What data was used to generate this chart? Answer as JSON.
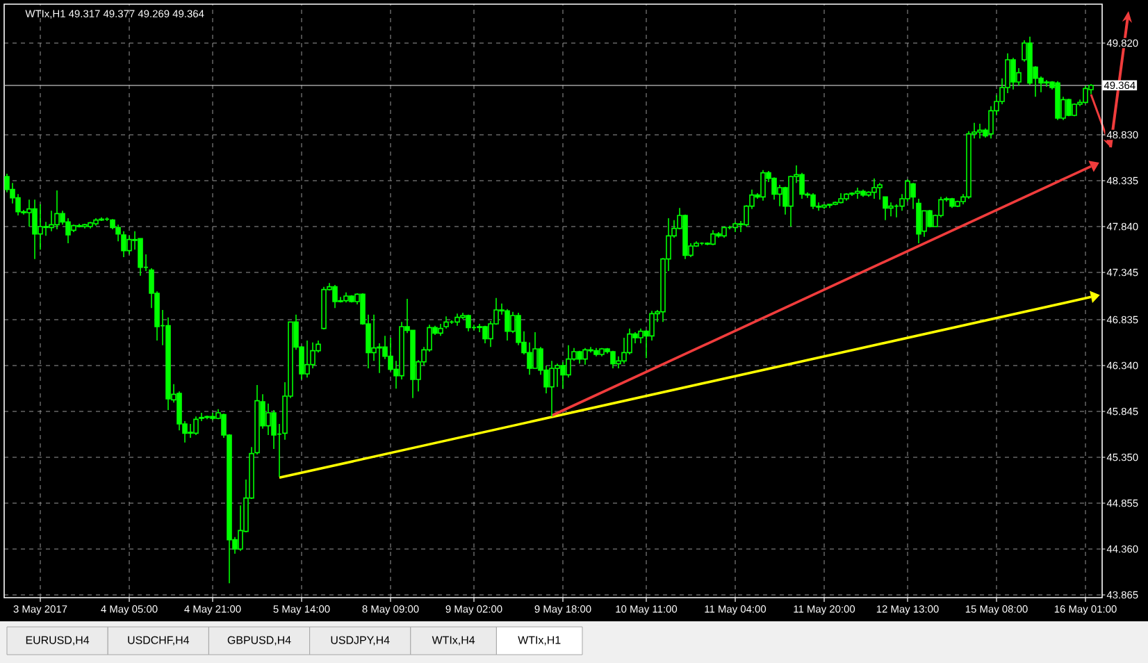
{
  "chart_data": {
    "type": "candlestick",
    "title": "WTIx,H1 49.317 49.377 49.269 49.364",
    "color": "#00ff00",
    "grid": true,
    "categories": [
      null,
      null,
      null,
      null,
      null,
      null,
      "3 May 2017",
      null,
      null,
      null,
      null,
      null,
      null,
      null,
      null,
      null,
      null,
      null,
      null,
      null,
      null,
      null,
      "4 May 05:00",
      null,
      null,
      null,
      null,
      null,
      null,
      null,
      null,
      null,
      null,
      null,
      null,
      null,
      null,
      "4 May 21:00",
      null,
      null,
      null,
      null,
      null,
      null,
      null,
      null,
      null,
      null,
      null,
      null,
      null,
      null,
      null,
      "5 May 14:00",
      null,
      null,
      null,
      null,
      null,
      null,
      null,
      null,
      null,
      null,
      null,
      null,
      null,
      null,
      null,
      "8 May 09:00",
      null,
      null,
      null,
      null,
      null,
      null,
      null,
      null,
      null,
      null,
      null,
      null,
      null,
      null,
      "9 May 02:00",
      null,
      null,
      null,
      null,
      null,
      null,
      null,
      null,
      null,
      null,
      null,
      null,
      null,
      null,
      null,
      "9 May 18:00",
      null,
      null,
      null,
      null,
      null,
      null,
      null,
      null,
      null,
      null,
      null,
      null,
      null,
      null,
      "10 May 11:00",
      null,
      null,
      null,
      null,
      null,
      null,
      null,
      null,
      null,
      null,
      null,
      null,
      null,
      null,
      null,
      "11 May 04:00",
      null,
      null,
      null,
      null,
      null,
      null,
      null,
      null,
      null,
      null,
      null,
      null,
      null,
      null,
      null,
      "11 May 20:00",
      null,
      null,
      null,
      null,
      null,
      null,
      null,
      null,
      null,
      null,
      null,
      null,
      null,
      null,
      "12 May 13:00",
      null,
      null,
      null,
      null,
      null,
      null,
      null,
      null,
      null,
      null,
      null,
      null,
      null,
      null,
      null,
      "15 May 08:00",
      null,
      null,
      null,
      null,
      null,
      null,
      null,
      null,
      null,
      null,
      null,
      null,
      null,
      null,
      null,
      "16 May 01:00",
      null
    ],
    "ohlc": [
      [
        48.38,
        48.41,
        48.21,
        48.24
      ],
      [
        48.24,
        48.31,
        48.09,
        48.15
      ],
      [
        48.15,
        48.19,
        47.96,
        48.0
      ],
      [
        48.0,
        48.02,
        47.97,
        47.99
      ],
      [
        47.99,
        48.13,
        47.84,
        48.03
      ],
      [
        48.03,
        48.13,
        47.49,
        47.76
      ],
      [
        47.76,
        48.08,
        47.59,
        47.84
      ],
      [
        47.84,
        47.89,
        47.74,
        47.83
      ],
      [
        47.83,
        48.01,
        47.79,
        47.86
      ],
      [
        47.86,
        48.23,
        47.81,
        47.98
      ],
      [
        47.98,
        48.01,
        47.86,
        47.89
      ],
      [
        47.89,
        47.93,
        47.66,
        47.75
      ],
      [
        47.8,
        47.86,
        47.78,
        47.85
      ],
      [
        47.85,
        47.87,
        47.83,
        47.84
      ],
      [
        47.84,
        47.87,
        47.82,
        47.86
      ],
      [
        47.84,
        47.89,
        47.82,
        47.88
      ],
      [
        47.87,
        47.93,
        47.85,
        47.91
      ],
      [
        47.91,
        47.94,
        47.9,
        47.92
      ],
      [
        47.92,
        47.94,
        47.9,
        47.92
      ],
      [
        47.91,
        47.92,
        47.81,
        47.83
      ],
      [
        47.83,
        47.86,
        47.68,
        47.76
      ],
      [
        47.75,
        47.79,
        47.51,
        47.58
      ],
      [
        47.58,
        47.74,
        47.54,
        47.7
      ],
      [
        47.7,
        47.79,
        47.59,
        47.69
      ],
      [
        47.71,
        47.71,
        47.31,
        47.4
      ],
      [
        47.4,
        47.54,
        47.36,
        47.4
      ],
      [
        47.37,
        47.39,
        46.96,
        47.12
      ],
      [
        47.12,
        47.14,
        46.61,
        46.76
      ],
      [
        46.77,
        46.94,
        46.56,
        46.77
      ],
      [
        46.77,
        46.86,
        45.86,
        45.98
      ],
      [
        45.97,
        46.14,
        45.94,
        46.03
      ],
      [
        46.04,
        46.06,
        45.64,
        45.71
      ],
      [
        45.71,
        45.74,
        45.51,
        45.61
      ],
      [
        45.61,
        45.71,
        45.56,
        45.62
      ],
      [
        45.61,
        45.79,
        45.59,
        45.76
      ],
      [
        45.77,
        45.83,
        45.74,
        45.78
      ],
      [
        45.78,
        45.8,
        45.76,
        45.79
      ],
      [
        45.79,
        45.83,
        45.75,
        45.77
      ],
      [
        45.77,
        45.87,
        45.76,
        45.83
      ],
      [
        45.81,
        45.82,
        45.56,
        45.59
      ],
      [
        45.59,
        45.6,
        43.99,
        44.46
      ],
      [
        44.46,
        44.49,
        44.31,
        44.36
      ],
      [
        44.36,
        44.83,
        44.34,
        44.56
      ],
      [
        44.55,
        45.11,
        44.54,
        44.91
      ],
      [
        44.91,
        45.46,
        44.9,
        45.39
      ],
      [
        45.4,
        46.13,
        45.38,
        45.96
      ],
      [
        45.95,
        46.03,
        45.66,
        45.69
      ],
      [
        45.69,
        45.93,
        45.59,
        45.83
      ],
      [
        45.83,
        45.86,
        45.44,
        45.59
      ],
      [
        45.6,
        45.71,
        45.14,
        45.6
      ],
      [
        45.61,
        46.16,
        45.54,
        46.01
      ],
      [
        46.01,
        46.81,
        45.99,
        46.81
      ],
      [
        46.81,
        46.89,
        46.51,
        46.54
      ],
      [
        46.54,
        46.55,
        46.19,
        46.25
      ],
      [
        46.25,
        46.61,
        46.21,
        46.35
      ],
      [
        46.35,
        46.59,
        46.31,
        46.5
      ],
      [
        46.5,
        46.61,
        46.48,
        46.57
      ],
      [
        46.74,
        47.19,
        46.73,
        47.16
      ],
      [
        47.16,
        47.23,
        47.15,
        47.19
      ],
      [
        47.19,
        47.21,
        46.96,
        47.03
      ],
      [
        47.03,
        47.08,
        47.02,
        47.04
      ],
      [
        47.04,
        47.13,
        47.02,
        47.09
      ],
      [
        47.09,
        47.1,
        47.02,
        47.03
      ],
      [
        47.03,
        47.12,
        47.0,
        47.11
      ],
      [
        47.11,
        47.12,
        46.78,
        46.79
      ],
      [
        46.79,
        46.89,
        46.31,
        46.48
      ],
      [
        46.48,
        46.89,
        46.39,
        46.53
      ],
      [
        46.53,
        46.58,
        46.26,
        46.54
      ],
      [
        46.54,
        46.66,
        46.41,
        46.44
      ],
      [
        46.44,
        46.64,
        46.28,
        46.3
      ],
      [
        46.3,
        46.39,
        46.09,
        46.23
      ],
      [
        46.23,
        46.81,
        46.19,
        46.76
      ],
      [
        46.76,
        47.06,
        46.69,
        46.72
      ],
      [
        46.72,
        46.72,
        45.99,
        46.19
      ],
      [
        46.19,
        46.4,
        46.06,
        46.38
      ],
      [
        46.38,
        46.54,
        46.34,
        46.51
      ],
      [
        46.51,
        46.78,
        46.49,
        46.75
      ],
      [
        46.75,
        46.77,
        46.67,
        46.69
      ],
      [
        46.69,
        46.79,
        46.66,
        46.74
      ],
      [
        46.76,
        46.87,
        46.74,
        46.81
      ],
      [
        46.81,
        46.83,
        46.79,
        46.81
      ],
      [
        46.81,
        46.9,
        46.77,
        46.86
      ],
      [
        46.86,
        46.91,
        46.84,
        46.88
      ],
      [
        46.88,
        46.89,
        46.71,
        46.75
      ],
      [
        46.75,
        46.78,
        46.72,
        46.75
      ],
      [
        46.75,
        46.79,
        46.7,
        46.76
      ],
      [
        46.76,
        46.77,
        46.58,
        46.63
      ],
      [
        46.63,
        46.82,
        46.54,
        46.79
      ],
      [
        46.79,
        47.07,
        46.78,
        46.94
      ],
      [
        46.94,
        47.01,
        46.89,
        46.93
      ],
      [
        46.93,
        46.95,
        46.61,
        46.71
      ],
      [
        46.71,
        46.92,
        46.69,
        46.88
      ],
      [
        46.88,
        46.91,
        46.56,
        46.59
      ],
      [
        46.59,
        46.71,
        46.46,
        46.48
      ],
      [
        46.48,
        46.59,
        46.24,
        46.31
      ],
      [
        46.31,
        46.7,
        46.31,
        46.52
      ],
      [
        46.52,
        46.54,
        46.24,
        46.29
      ],
      [
        46.29,
        46.34,
        46.04,
        46.11
      ],
      [
        46.11,
        46.39,
        45.79,
        46.31
      ],
      [
        46.31,
        46.36,
        46.11,
        46.34
      ],
      [
        46.34,
        46.38,
        46.09,
        46.24
      ],
      [
        46.24,
        46.56,
        46.21,
        46.41
      ],
      [
        46.41,
        46.53,
        46.39,
        46.49
      ],
      [
        46.49,
        46.5,
        46.36,
        46.41
      ],
      [
        46.41,
        46.53,
        46.35,
        46.51
      ],
      [
        46.51,
        46.54,
        46.48,
        46.5
      ],
      [
        46.5,
        46.53,
        46.44,
        46.46
      ],
      [
        46.46,
        46.53,
        46.44,
        46.52
      ],
      [
        46.52,
        46.53,
        46.47,
        46.49
      ],
      [
        46.49,
        46.5,
        46.31,
        46.36
      ],
      [
        46.36,
        46.44,
        46.31,
        46.39
      ],
      [
        46.39,
        46.64,
        46.36,
        46.48
      ],
      [
        46.48,
        46.74,
        46.46,
        46.68
      ],
      [
        46.68,
        46.7,
        46.58,
        46.64
      ],
      [
        46.64,
        46.74,
        46.58,
        46.71
      ],
      [
        46.71,
        46.72,
        46.42,
        46.66
      ],
      [
        46.66,
        46.93,
        46.61,
        46.9
      ],
      [
        46.9,
        46.94,
        46.81,
        46.92
      ],
      [
        46.92,
        47.5,
        46.81,
        47.49
      ],
      [
        47.49,
        47.93,
        47.36,
        47.74
      ],
      [
        47.74,
        47.91,
        47.72,
        47.82
      ],
      [
        47.82,
        48.04,
        47.81,
        47.96
      ],
      [
        47.96,
        47.97,
        47.49,
        47.53
      ],
      [
        47.53,
        47.66,
        47.51,
        47.63
      ],
      [
        47.63,
        47.68,
        47.62,
        47.66
      ],
      [
        47.66,
        47.67,
        47.64,
        47.66
      ],
      [
        47.66,
        47.67,
        47.64,
        47.65
      ],
      [
        47.65,
        47.8,
        47.64,
        47.76
      ],
      [
        47.76,
        47.78,
        47.72,
        47.74
      ],
      [
        47.74,
        47.84,
        47.72,
        47.83
      ],
      [
        47.83,
        47.85,
        47.81,
        47.83
      ],
      [
        47.83,
        47.89,
        47.78,
        47.87
      ],
      [
        47.87,
        47.9,
        47.78,
        47.86
      ],
      [
        47.86,
        48.07,
        47.84,
        48.06
      ],
      [
        48.06,
        48.24,
        48.03,
        48.18
      ],
      [
        48.18,
        48.2,
        48.14,
        48.16
      ],
      [
        48.16,
        48.45,
        48.12,
        48.42
      ],
      [
        48.42,
        48.44,
        48.32,
        48.36
      ],
      [
        48.36,
        48.37,
        48.13,
        48.19
      ],
      [
        48.19,
        48.29,
        48.06,
        48.26
      ],
      [
        48.26,
        48.27,
        47.97,
        48.06
      ],
      [
        48.06,
        48.39,
        47.84,
        48.38
      ],
      [
        48.38,
        48.5,
        48.31,
        48.4
      ],
      [
        48.4,
        48.42,
        48.14,
        48.19
      ],
      [
        48.19,
        48.21,
        48.15,
        48.18
      ],
      [
        48.18,
        48.2,
        48.03,
        48.06
      ],
      [
        48.06,
        48.1,
        48.01,
        48.05
      ],
      [
        48.05,
        48.08,
        48.03,
        48.07
      ],
      [
        48.07,
        48.08,
        48.04,
        48.08
      ],
      [
        48.08,
        48.11,
        48.07,
        48.1
      ],
      [
        48.1,
        48.2,
        48.09,
        48.14
      ],
      [
        48.14,
        48.2,
        48.12,
        48.19
      ],
      [
        48.19,
        48.21,
        48.17,
        48.2
      ],
      [
        48.2,
        48.26,
        48.14,
        48.22
      ],
      [
        48.22,
        48.24,
        48.16,
        48.18
      ],
      [
        48.18,
        48.22,
        48.16,
        48.21
      ],
      [
        48.21,
        48.36,
        48.14,
        48.26
      ],
      [
        48.26,
        48.31,
        48.13,
        48.29
      ],
      [
        48.16,
        48.16,
        47.91,
        48.04
      ],
      [
        48.04,
        48.1,
        47.95,
        48.06
      ],
      [
        48.06,
        48.08,
        47.94,
        48.06
      ],
      [
        48.06,
        48.19,
        48.01,
        48.14
      ],
      [
        48.14,
        48.35,
        48.11,
        48.33
      ],
      [
        48.3,
        48.31,
        48.03,
        48.16
      ],
      [
        48.09,
        48.14,
        47.66,
        47.76
      ],
      [
        47.79,
        48.01,
        47.73,
        48.01
      ],
      [
        48.01,
        48.02,
        47.83,
        47.84
      ],
      [
        47.84,
        47.97,
        47.84,
        47.96
      ],
      [
        47.96,
        48.16,
        47.94,
        48.13
      ],
      [
        48.13,
        48.16,
        48.11,
        48.14
      ],
      [
        48.14,
        48.15,
        48.04,
        48.06
      ],
      [
        48.06,
        48.12,
        48.05,
        48.11
      ],
      [
        48.11,
        48.19,
        48.08,
        48.16
      ],
      [
        48.16,
        48.87,
        48.14,
        48.84
      ],
      [
        48.84,
        48.96,
        48.79,
        48.86
      ],
      [
        48.86,
        48.95,
        48.79,
        48.88
      ],
      [
        48.88,
        48.9,
        48.8,
        48.82
      ],
      [
        48.84,
        49.14,
        48.79,
        49.09
      ],
      [
        49.09,
        49.26,
        49.04,
        49.19
      ],
      [
        49.19,
        49.44,
        49.16,
        49.34
      ],
      [
        49.34,
        49.71,
        49.28,
        49.64
      ],
      [
        49.64,
        49.66,
        49.32,
        49.4
      ],
      [
        49.4,
        49.55,
        49.36,
        49.5
      ],
      [
        49.64,
        49.85,
        49.62,
        49.82
      ],
      [
        49.82,
        49.89,
        49.37,
        49.39
      ],
      [
        49.56,
        49.57,
        49.24,
        49.44
      ],
      [
        49.44,
        49.46,
        49.29,
        49.39
      ],
      [
        49.39,
        49.42,
        49.35,
        49.4
      ],
      [
        49.4,
        49.41,
        49.32,
        49.34
      ],
      [
        49.39,
        49.41,
        48.99,
        49.01
      ],
      [
        49.01,
        49.24,
        48.99,
        49.21
      ],
      [
        49.21,
        49.22,
        49.03,
        49.04
      ],
      [
        49.04,
        49.17,
        49.03,
        49.16
      ],
      [
        49.16,
        49.21,
        49.14,
        49.18
      ],
      [
        49.18,
        49.36,
        49.17,
        49.33
      ],
      [
        49.317,
        49.377,
        49.269,
        49.364
      ]
    ],
    "series": [
      {
        "type": "line",
        "color": "#ffff00",
        "values": [
          null,
          null,
          null,
          null,
          null,
          null,
          null,
          null,
          null,
          null,
          null,
          null,
          null,
          null,
          null,
          null,
          null,
          null,
          null,
          null,
          null,
          null,
          null,
          null,
          null,
          null,
          null,
          null,
          null,
          null,
          null,
          null,
          null,
          null,
          null,
          null,
          null,
          null,
          null,
          null,
          null,
          null,
          null,
          null,
          null,
          null,
          null,
          null,
          null,
          45.13,
          null,
          null,
          null,
          null,
          null,
          null,
          null,
          null,
          null,
          null,
          null,
          null,
          null,
          null,
          null,
          null,
          null,
          null,
          null,
          null,
          null,
          null,
          null,
          null,
          null,
          null,
          null,
          null,
          null,
          null,
          null,
          null,
          null,
          null,
          null,
          null,
          null,
          null,
          null,
          null,
          null,
          null,
          null,
          null,
          null,
          null,
          null,
          null,
          null,
          null,
          null,
          null,
          null,
          null,
          null,
          null,
          null,
          null,
          null,
          null,
          null,
          null,
          null,
          null,
          null,
          null,
          null,
          null,
          null,
          null,
          null,
          null,
          null,
          null,
          null,
          null,
          null,
          null,
          null,
          null,
          null,
          null,
          null,
          null,
          null,
          null,
          null,
          null,
          null,
          null,
          null,
          null,
          null,
          null,
          null,
          null,
          null,
          null,
          null,
          null,
          null,
          null,
          null,
          null,
          null,
          null,
          null,
          null,
          null,
          null,
          null,
          null,
          null,
          null,
          null,
          null,
          null,
          null,
          null,
          null,
          null,
          null,
          null,
          null,
          null,
          null,
          null,
          null,
          null,
          null,
          null,
          null,
          null,
          null,
          null,
          null,
          null,
          null,
          null,
          null,
          null,
          null,
          null,
          null,
          null,
          47.08
        ]
      },
      {
        "type": "line",
        "color": "#f03c3c",
        "values": [
          null,
          null,
          null,
          null,
          null,
          null,
          null,
          null,
          null,
          null,
          null,
          null,
          null,
          null,
          null,
          null,
          null,
          null,
          null,
          null,
          null,
          null,
          null,
          null,
          null,
          null,
          null,
          null,
          null,
          null,
          null,
          null,
          null,
          null,
          null,
          null,
          null,
          null,
          null,
          null,
          null,
          null,
          null,
          null,
          null,
          null,
          null,
          null,
          null,
          null,
          null,
          null,
          null,
          null,
          null,
          null,
          null,
          null,
          null,
          null,
          null,
          null,
          null,
          null,
          null,
          null,
          null,
          null,
          null,
          null,
          null,
          null,
          null,
          null,
          null,
          null,
          null,
          null,
          null,
          null,
          null,
          null,
          null,
          null,
          null,
          null,
          null,
          null,
          null,
          null,
          null,
          null,
          null,
          null,
          null,
          null,
          null,
          null,
          45.8,
          null,
          null,
          null,
          null,
          null,
          null,
          null,
          null,
          null,
          null,
          null,
          null,
          null,
          null,
          null,
          null,
          null,
          null,
          null,
          null,
          null,
          null,
          null,
          null,
          null,
          null,
          null,
          null,
          null,
          null,
          null,
          null,
          null,
          null,
          null,
          null,
          null,
          null,
          null,
          null,
          null,
          null,
          null,
          null,
          null,
          null,
          null,
          null,
          null,
          null,
          null,
          null,
          null,
          null,
          null,
          null,
          null,
          null,
          null,
          null,
          null,
          null,
          null,
          null,
          null,
          null,
          null,
          null,
          null,
          null,
          null,
          null,
          null,
          null,
          null,
          null,
          null,
          null,
          null,
          null,
          null,
          null,
          null,
          null,
          null,
          null,
          null,
          null,
          null,
          null,
          null,
          null,
          null,
          null,
          null,
          null,
          48.49
        ]
      }
    ],
    "ylim": [
      43.835,
      50.24
    ],
    "yticks": [
      {
        "value": 49.82,
        "label": "49.820"
      },
      {
        "value": 48.83,
        "label": "48.830"
      },
      48.335,
      {
        "value": 47.84,
        "label": "47.840"
      },
      47.345,
      46.835,
      {
        "value": 46.34,
        "label": "46.340"
      },
      45.845,
      {
        "value": 45.35,
        "label": "45.350"
      },
      44.855,
      {
        "value": 44.36,
        "label": "44.360"
      },
      43.865
    ],
    "ref_lines": [
      {
        "axis": "y",
        "value": 49.364,
        "label": "49.364",
        "color": "#c0c0c0"
      }
    ],
    "annotations": [
      "EURUSD,H4",
      "USDCHF,H4",
      "GBPUSD,H4",
      "USDJPY,H4",
      "WTIx,H4",
      "WTIx,H1"
    ]
  }
}
